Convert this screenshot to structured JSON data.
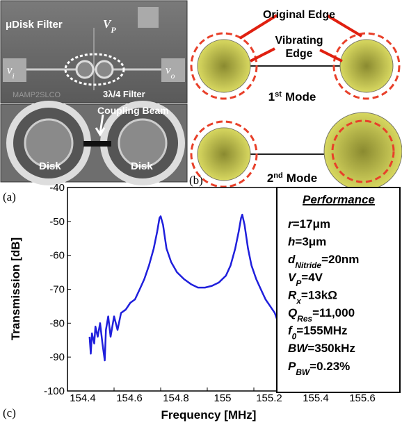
{
  "panel_a": {
    "label": "(a)",
    "title": "μDisk Filter",
    "vp": {
      "sym": "V",
      "sub": "P"
    },
    "vi": {
      "sym": "v",
      "sub": "i"
    },
    "vo": {
      "sym": "v",
      "sub": "o"
    },
    "filter": "3λ/4 Filter",
    "watermark": "MAMP2SLCO",
    "coupling": "Coupling Beam",
    "disks": [
      "Disk",
      "Disk"
    ]
  },
  "panel_b": {
    "label": "(b)",
    "original_edge": "Original Edge",
    "vibrating_edge": [
      "Vibrating",
      "Edge"
    ],
    "modes": [
      {
        "ordinal": "1",
        "suffix": "st",
        "word": "Mode"
      },
      {
        "ordinal": "2",
        "suffix": "nd",
        "word": "Mode"
      }
    ]
  },
  "panel_c": {
    "label": "(c)"
  },
  "performance": {
    "title": "Performance",
    "items": [
      {
        "sym": "r",
        "val": "=17μm"
      },
      {
        "sym": "h",
        "val": "=3μm"
      },
      {
        "sym": "d",
        "sub": "Nitride",
        "val": "=20nm"
      },
      {
        "sym": "V",
        "sub": "P",
        "val": "=4V"
      },
      {
        "sym": "R",
        "sub": "x",
        "val": "=13kΩ"
      },
      {
        "sym": "Q",
        "sub": "Res",
        "val": "=11,000"
      },
      {
        "sym": "f",
        "sub": "0",
        "val": "=155MHz"
      },
      {
        "sym": "BW",
        "val": "=350kHz"
      },
      {
        "sym": "P",
        "sub": "BW",
        "val": "=0.23%"
      }
    ]
  },
  "chart_data": {
    "type": "line",
    "xlabel": "Frequency [MHz]",
    "ylabel": "Transmission [dB]",
    "color": "#1f1fdc",
    "xlim": [
      154.4,
      155.6
    ],
    "xticks": [
      154.4,
      154.6,
      154.8,
      155,
      155.2,
      155.4,
      155.6
    ],
    "ylim": [
      -100,
      -40
    ],
    "yticks": [
      -100,
      -90,
      -80,
      -70,
      -60,
      -50,
      -40
    ],
    "x": [
      154.495,
      154.5,
      154.505,
      154.515,
      154.52,
      154.53,
      154.54,
      154.55,
      154.56,
      154.565,
      154.575,
      154.585,
      154.6,
      154.615,
      154.63,
      154.65,
      154.67,
      154.69,
      154.71,
      154.73,
      154.75,
      154.77,
      154.785,
      154.795,
      154.8,
      154.81,
      154.825,
      154.845,
      154.87,
      154.9,
      154.93,
      154.96,
      154.99,
      155.02,
      155.05,
      155.08,
      155.1,
      155.12,
      155.135,
      155.145,
      155.15,
      155.16,
      155.175,
      155.19,
      155.21,
      155.23,
      155.25,
      155.27,
      155.29,
      155.3
    ],
    "values": [
      -84,
      -89,
      -83,
      -86,
      -81,
      -84,
      -80,
      -86,
      -91,
      -82,
      -78,
      -84,
      -78,
      -82,
      -77,
      -76,
      -74,
      -73,
      -70,
      -67,
      -63,
      -58,
      -53,
      -49,
      -48.5,
      -51,
      -58,
      -62,
      -65,
      -67,
      -68.5,
      -69.5,
      -69.5,
      -69,
      -68,
      -66,
      -63,
      -58,
      -53,
      -49,
      -48,
      -51,
      -58,
      -63,
      -67,
      -70,
      -73,
      -75,
      -77,
      -79
    ]
  }
}
